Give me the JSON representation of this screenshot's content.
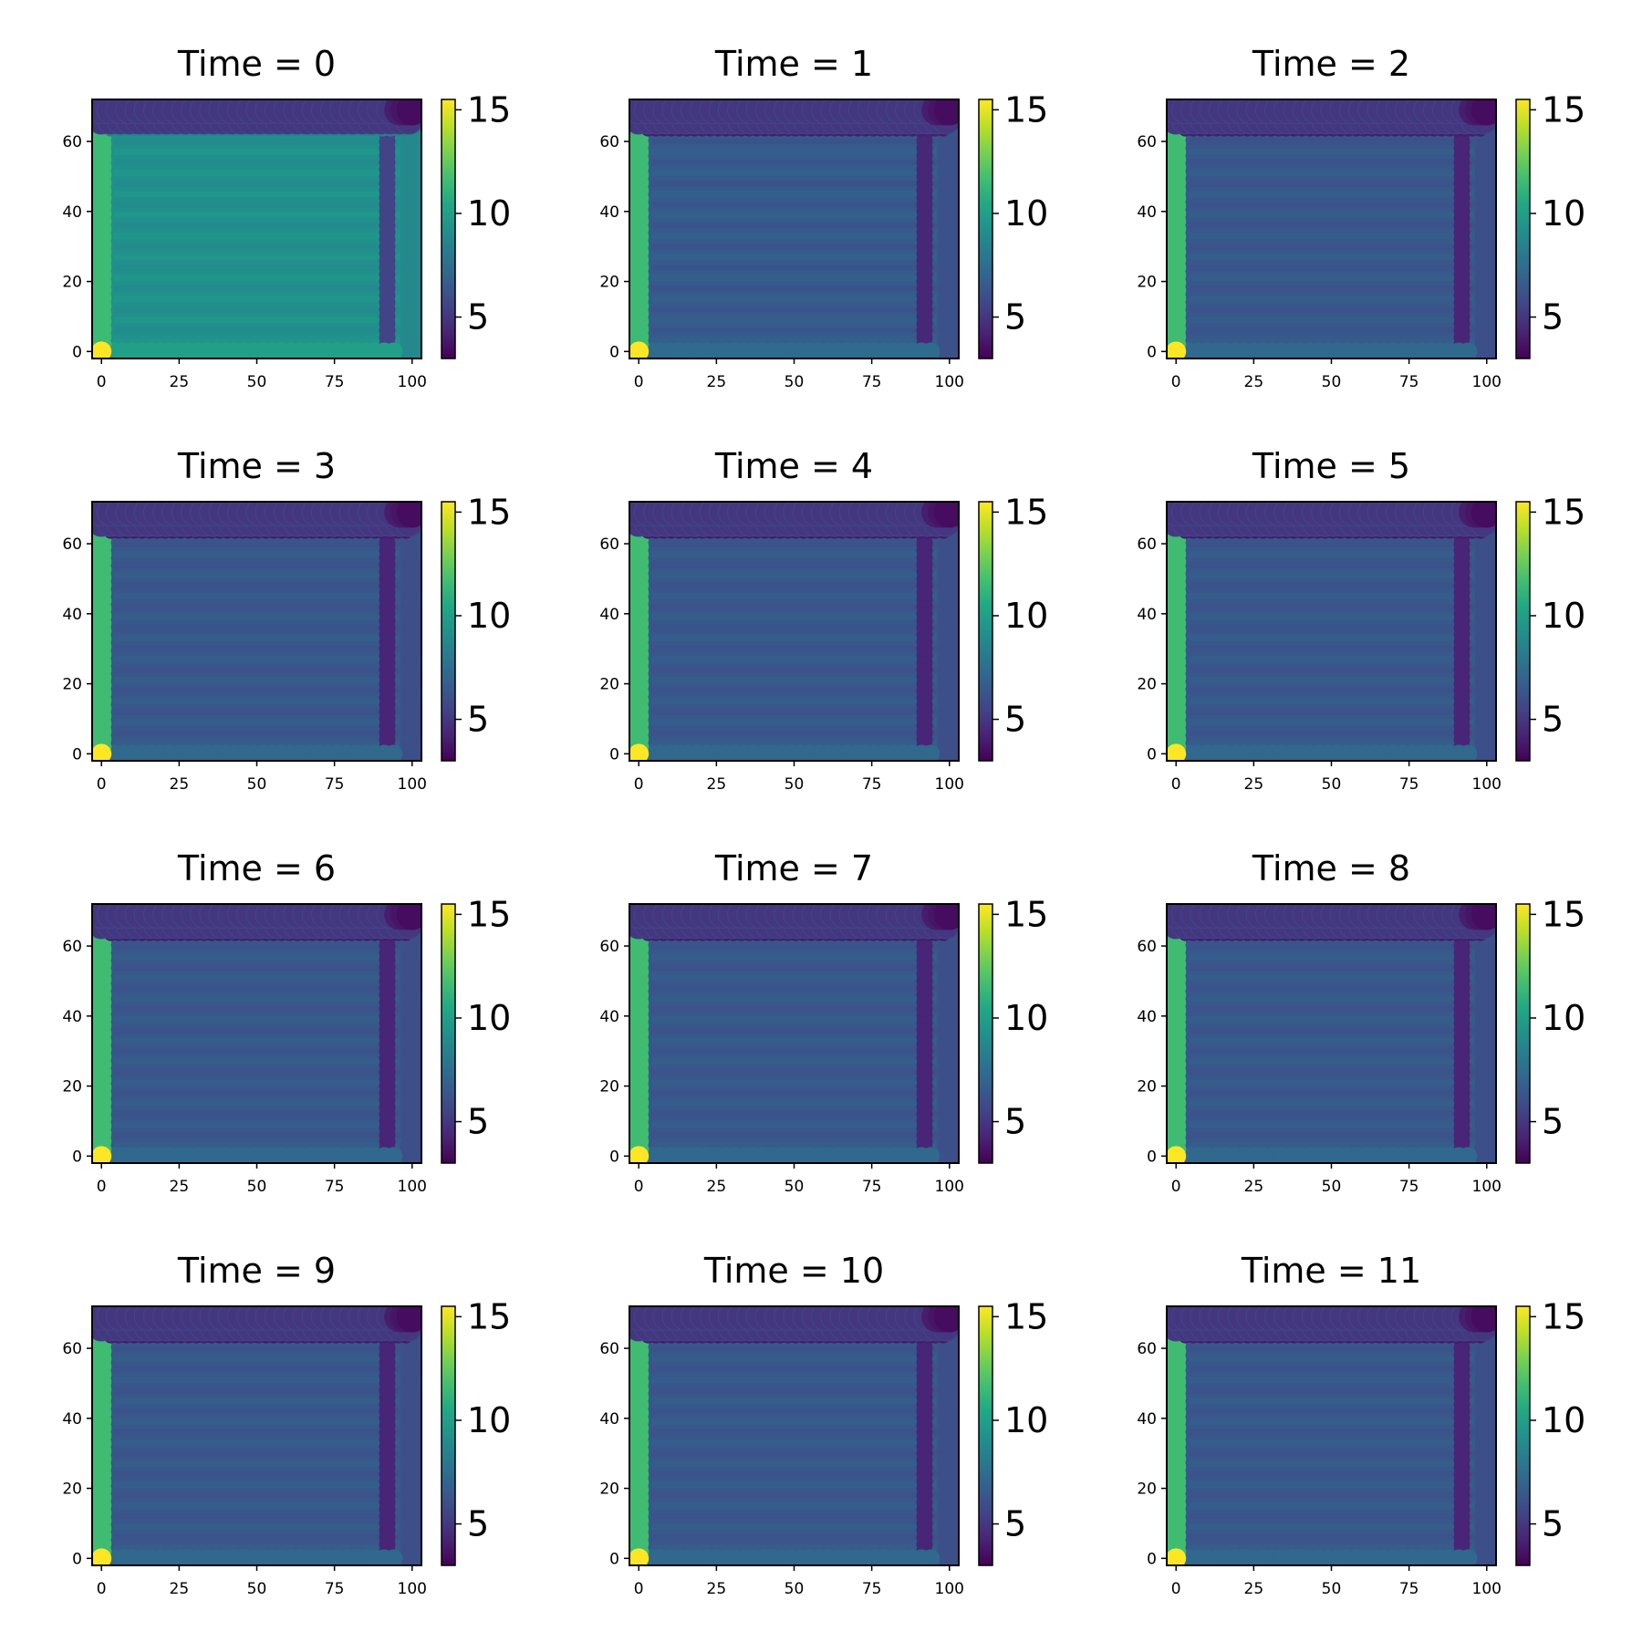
{
  "figure": {
    "colormap": "viridis",
    "color_range": [
      3,
      15.5
    ]
  },
  "chart_data": [
    {
      "type": "scatter",
      "title": "Time = 0",
      "xticks": [
        "0",
        "25",
        "50",
        "75",
        "100"
      ],
      "yticks": [
        "0",
        "20",
        "40",
        "60"
      ],
      "colorbar_ticks": [
        "5",
        "10",
        "15"
      ],
      "xlim": [
        -3,
        103
      ],
      "ylim": [
        -2,
        72
      ],
      "grid_x": [
        0,
        100
      ],
      "grid_y": [
        0,
        69
      ],
      "field": {
        "interior": 9.2,
        "top_rows": 5.0,
        "separator_row": 8.6,
        "left_column": 11.5,
        "right_column": 5.5,
        "corner_bottom_left": 15.5
      }
    },
    {
      "type": "scatter",
      "title": "Time = 1",
      "xticks": [
        "0",
        "25",
        "50",
        "75",
        "100"
      ],
      "yticks": [
        "0",
        "20",
        "40",
        "60"
      ],
      "colorbar_ticks": [
        "5",
        "10",
        "15"
      ],
      "xlim": [
        -3,
        103
      ],
      "ylim": [
        -2,
        72
      ],
      "grid_x": [
        0,
        100
      ],
      "grid_y": [
        0,
        69
      ],
      "field": {
        "interior": 6.5,
        "top_rows": 5.0,
        "separator_row": 4.0,
        "left_column": 11.5,
        "right_column": 4.4,
        "corner_bottom_left": 15.5
      }
    },
    {
      "type": "scatter",
      "title": "Time = 2",
      "xticks": [
        "0",
        "25",
        "50",
        "75",
        "100"
      ],
      "yticks": [
        "0",
        "20",
        "40",
        "60"
      ],
      "colorbar_ticks": [
        "5",
        "10",
        "15"
      ],
      "xlim": [
        -3,
        103
      ],
      "ylim": [
        -2,
        72
      ],
      "grid_x": [
        0,
        100
      ],
      "grid_y": [
        0,
        69
      ],
      "field": {
        "interior": 6.4,
        "top_rows": 5.0,
        "separator_row": 3.9,
        "left_column": 11.6,
        "right_column": 4.3,
        "corner_bottom_left": 15.5
      }
    },
    {
      "type": "scatter",
      "title": "Time = 3",
      "xticks": [
        "0",
        "25",
        "50",
        "75",
        "100"
      ],
      "yticks": [
        "0",
        "20",
        "40",
        "60"
      ],
      "colorbar_ticks": [
        "5",
        "10",
        "15"
      ],
      "xlim": [
        -3,
        103
      ],
      "ylim": [
        -2,
        72
      ],
      "grid_x": [
        0,
        100
      ],
      "grid_y": [
        0,
        69
      ],
      "field": {
        "interior": 6.4,
        "top_rows": 5.0,
        "separator_row": 3.9,
        "left_column": 11.6,
        "right_column": 4.3,
        "corner_bottom_left": 15.5
      }
    },
    {
      "type": "scatter",
      "title": "Time = 4",
      "xticks": [
        "0",
        "25",
        "50",
        "75",
        "100"
      ],
      "yticks": [
        "0",
        "20",
        "40",
        "60"
      ],
      "colorbar_ticks": [
        "5",
        "10",
        "15"
      ],
      "xlim": [
        -3,
        103
      ],
      "ylim": [
        -2,
        72
      ],
      "grid_x": [
        0,
        100
      ],
      "grid_y": [
        0,
        69
      ],
      "field": {
        "interior": 6.4,
        "top_rows": 5.0,
        "separator_row": 3.9,
        "left_column": 11.6,
        "right_column": 4.3,
        "corner_bottom_left": 15.5
      }
    },
    {
      "type": "scatter",
      "title": "Time = 5",
      "xticks": [
        "0",
        "25",
        "50",
        "75",
        "100"
      ],
      "yticks": [
        "0",
        "20",
        "40",
        "60"
      ],
      "colorbar_ticks": [
        "5",
        "10",
        "15"
      ],
      "xlim": [
        -3,
        103
      ],
      "ylim": [
        -2,
        72
      ],
      "grid_x": [
        0,
        100
      ],
      "grid_y": [
        0,
        69
      ],
      "field": {
        "interior": 6.4,
        "top_rows": 5.0,
        "separator_row": 3.9,
        "left_column": 11.6,
        "right_column": 4.3,
        "corner_bottom_left": 15.5
      }
    },
    {
      "type": "scatter",
      "title": "Time = 6",
      "xticks": [
        "0",
        "25",
        "50",
        "75",
        "100"
      ],
      "yticks": [
        "0",
        "20",
        "40",
        "60"
      ],
      "colorbar_ticks": [
        "5",
        "10",
        "15"
      ],
      "xlim": [
        -3,
        103
      ],
      "ylim": [
        -2,
        72
      ],
      "grid_x": [
        0,
        100
      ],
      "grid_y": [
        0,
        69
      ],
      "field": {
        "interior": 6.4,
        "top_rows": 5.0,
        "separator_row": 3.9,
        "left_column": 11.6,
        "right_column": 4.3,
        "corner_bottom_left": 15.5
      }
    },
    {
      "type": "scatter",
      "title": "Time = 7",
      "xticks": [
        "0",
        "25",
        "50",
        "75",
        "100"
      ],
      "yticks": [
        "0",
        "20",
        "40",
        "60"
      ],
      "colorbar_ticks": [
        "5",
        "10",
        "15"
      ],
      "xlim": [
        -3,
        103
      ],
      "ylim": [
        -2,
        72
      ],
      "grid_x": [
        0,
        100
      ],
      "grid_y": [
        0,
        69
      ],
      "field": {
        "interior": 6.4,
        "top_rows": 5.0,
        "separator_row": 3.9,
        "left_column": 11.6,
        "right_column": 4.3,
        "corner_bottom_left": 15.5
      }
    },
    {
      "type": "scatter",
      "title": "Time = 8",
      "xticks": [
        "0",
        "25",
        "50",
        "75",
        "100"
      ],
      "yticks": [
        "0",
        "20",
        "40",
        "60"
      ],
      "colorbar_ticks": [
        "5",
        "10",
        "15"
      ],
      "xlim": [
        -3,
        103
      ],
      "ylim": [
        -2,
        72
      ],
      "grid_x": [
        0,
        100
      ],
      "grid_y": [
        0,
        69
      ],
      "field": {
        "interior": 6.4,
        "top_rows": 5.0,
        "separator_row": 3.9,
        "left_column": 11.6,
        "right_column": 4.3,
        "corner_bottom_left": 15.5
      }
    },
    {
      "type": "scatter",
      "title": "Time = 9",
      "xticks": [
        "0",
        "25",
        "50",
        "75",
        "100"
      ],
      "yticks": [
        "0",
        "20",
        "40",
        "60"
      ],
      "colorbar_ticks": [
        "5",
        "10",
        "15"
      ],
      "xlim": [
        -3,
        103
      ],
      "ylim": [
        -2,
        72
      ],
      "grid_x": [
        0,
        100
      ],
      "grid_y": [
        0,
        69
      ],
      "field": {
        "interior": 6.4,
        "top_rows": 5.0,
        "separator_row": 3.9,
        "left_column": 11.6,
        "right_column": 4.3,
        "corner_bottom_left": 15.5
      }
    },
    {
      "type": "scatter",
      "title": "Time = 10",
      "xticks": [
        "0",
        "25",
        "50",
        "75",
        "100"
      ],
      "yticks": [
        "0",
        "20",
        "40",
        "60"
      ],
      "colorbar_ticks": [
        "5",
        "10",
        "15"
      ],
      "xlim": [
        -3,
        103
      ],
      "ylim": [
        -2,
        72
      ],
      "grid_x": [
        0,
        100
      ],
      "grid_y": [
        0,
        69
      ],
      "field": {
        "interior": 6.4,
        "top_rows": 5.0,
        "separator_row": 3.9,
        "left_column": 11.6,
        "right_column": 4.3,
        "corner_bottom_left": 15.5
      }
    },
    {
      "type": "scatter",
      "title": "Time = 11",
      "xticks": [
        "0",
        "25",
        "50",
        "75",
        "100"
      ],
      "yticks": [
        "0",
        "20",
        "40",
        "60"
      ],
      "colorbar_ticks": [
        "5",
        "10",
        "15"
      ],
      "xlim": [
        -3,
        103
      ],
      "ylim": [
        -2,
        72
      ],
      "grid_x": [
        0,
        100
      ],
      "grid_y": [
        0,
        69
      ],
      "field": {
        "interior": 6.4,
        "top_rows": 5.0,
        "separator_row": 3.9,
        "left_column": 11.6,
        "right_column": 4.3,
        "corner_bottom_left": 15.5
      }
    }
  ]
}
